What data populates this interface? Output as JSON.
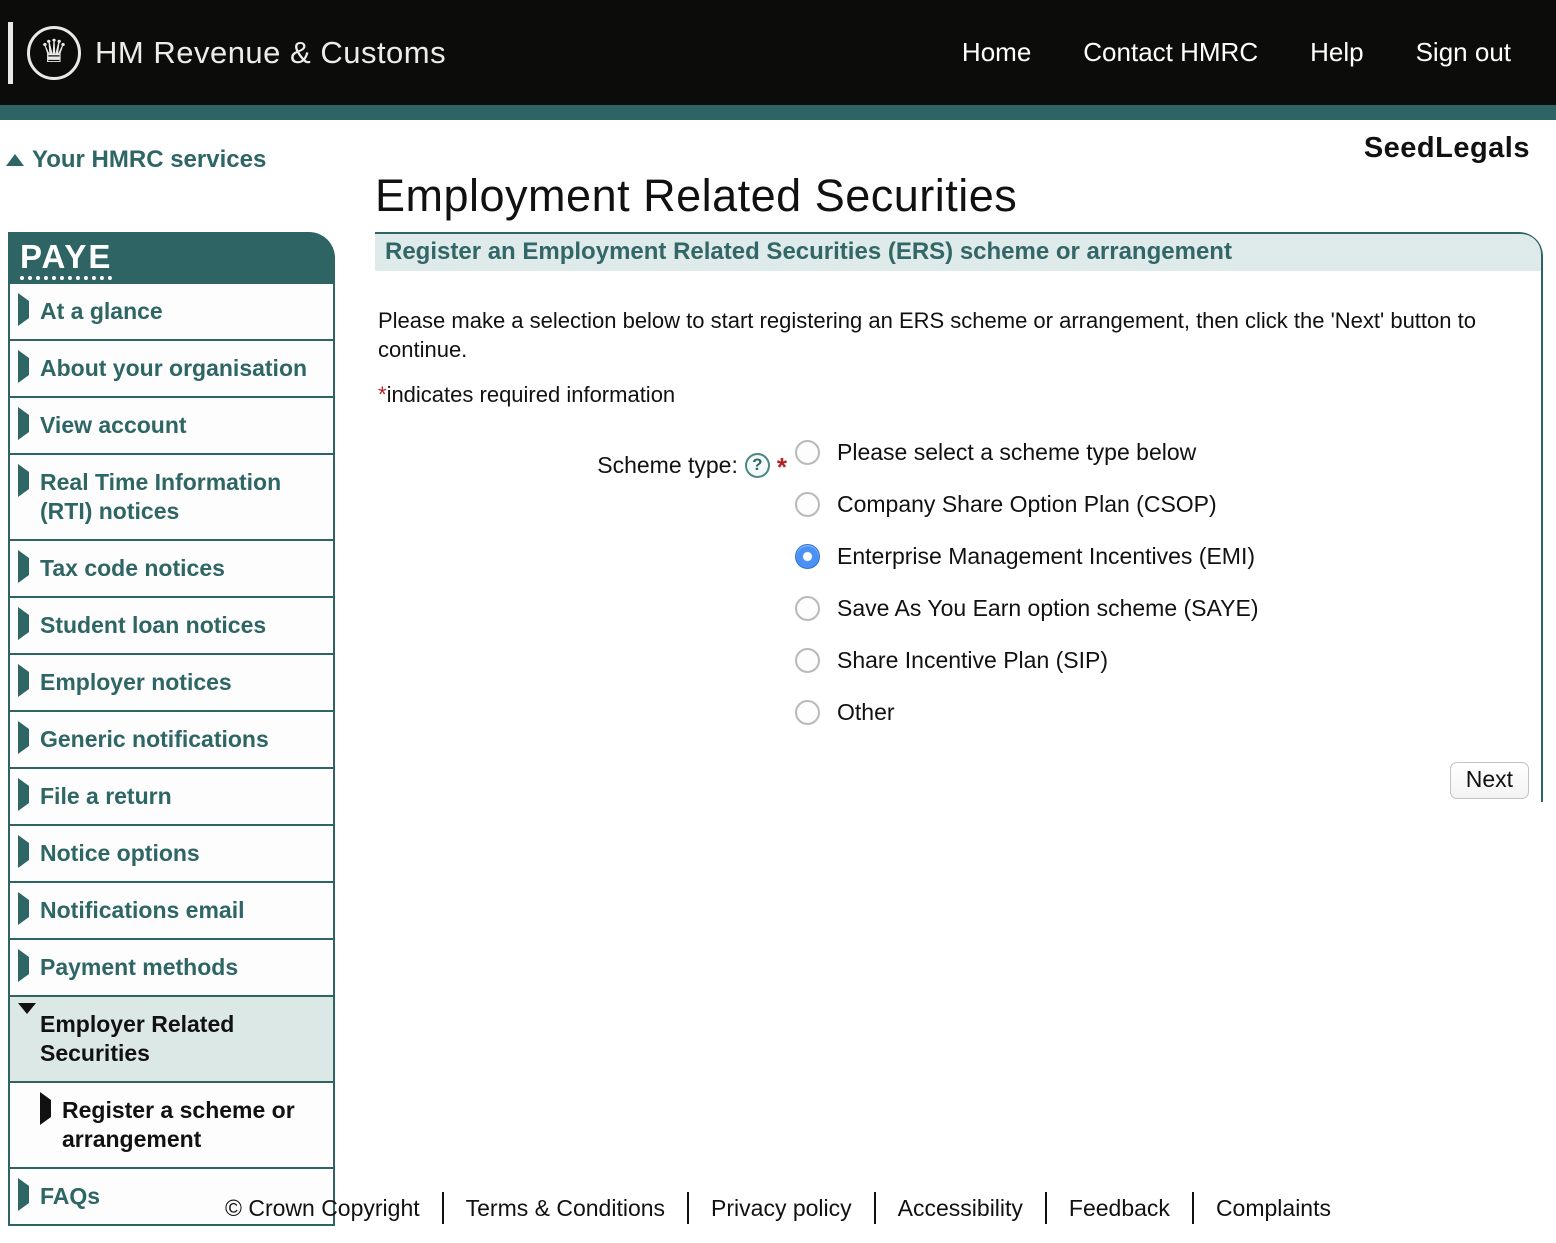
{
  "header": {
    "brand": "HM Revenue & Customs",
    "crown_icon": "crown-in-circle",
    "nav": [
      {
        "label": "Home"
      },
      {
        "label": "Contact HMRC"
      },
      {
        "label": "Help"
      },
      {
        "label": "Sign out"
      }
    ]
  },
  "services_link": {
    "label": "Your HMRC services",
    "icon": "triangle-up-icon"
  },
  "watermark": "SeedLegals",
  "sidebar": {
    "title": "PAYE",
    "items": [
      {
        "label": "At a glance",
        "state": "normal"
      },
      {
        "label": "About your organisation",
        "state": "normal"
      },
      {
        "label": "View account",
        "state": "normal"
      },
      {
        "label": "Real Time Information (RTI) notices",
        "state": "normal"
      },
      {
        "label": "Tax code notices",
        "state": "normal"
      },
      {
        "label": "Student loan notices",
        "state": "normal"
      },
      {
        "label": "Employer notices",
        "state": "normal"
      },
      {
        "label": "Generic notifications",
        "state": "normal"
      },
      {
        "label": "File a return",
        "state": "normal"
      },
      {
        "label": "Notice options",
        "state": "normal"
      },
      {
        "label": "Notifications email",
        "state": "normal"
      },
      {
        "label": "Payment methods",
        "state": "normal"
      },
      {
        "label": "Employer Related Securities",
        "state": "selected"
      },
      {
        "label": "Register a scheme or arrangement",
        "state": "sub"
      },
      {
        "label": "FAQs",
        "state": "normal"
      }
    ]
  },
  "main": {
    "title": "Employment Related Securities",
    "panel_heading": "Register an Employment Related Securities (ERS) scheme or arrangement",
    "intro": "Please make a selection below to start registering an ERS scheme or arrangement, then click the 'Next' button to continue.",
    "required_note": {
      "asterisk": "*",
      "text": "indicates required information"
    },
    "form": {
      "label": "Scheme type:",
      "help_icon": "?",
      "required_marker": "*",
      "options": [
        {
          "label": "Please select a scheme type below",
          "selected": false
        },
        {
          "label": "Company Share Option Plan (CSOP)",
          "selected": false
        },
        {
          "label": "Enterprise Management Incentives (EMI)",
          "selected": true
        },
        {
          "label": "Save As You Earn option scheme (SAYE)",
          "selected": false
        },
        {
          "label": "Share Incentive Plan (SIP)",
          "selected": false
        },
        {
          "label": "Other",
          "selected": false
        }
      ],
      "next_label": "Next"
    }
  },
  "footer": {
    "links": [
      "© Crown Copyright",
      "Terms & Conditions",
      "Privacy policy",
      "Accessibility",
      "Feedback",
      "Complaints"
    ]
  },
  "colors": {
    "teal": "#2e6464",
    "light_teal_bar": "#dfeaea",
    "selected_item_bg": "#dce8e6",
    "radio_selected_blue": "#4a90f5",
    "required_red": "#b22222",
    "header_black": "#0c0d0b"
  }
}
